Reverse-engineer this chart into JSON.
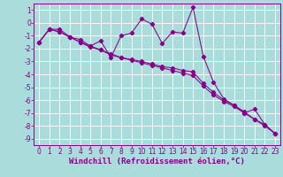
{
  "xlabel": "Windchill (Refroidissement éolien,°C)",
  "bg_color": "#aadcdc",
  "grid_color": "#c8e8e8",
  "line_color": "#880088",
  "x_data": [
    0,
    1,
    2,
    3,
    4,
    5,
    6,
    7,
    8,
    9,
    10,
    11,
    12,
    13,
    14,
    15,
    16,
    17,
    18,
    19,
    20,
    21,
    22,
    23
  ],
  "y_jagged": [
    -1.5,
    -0.5,
    -0.5,
    -1.1,
    -1.3,
    -1.8,
    -1.4,
    -2.7,
    -1.0,
    -0.8,
    0.3,
    -0.1,
    -1.6,
    -0.7,
    -0.8,
    1.2,
    -2.6,
    -4.6,
    -5.9,
    -6.4,
    -7.0,
    -6.7,
    -7.9,
    -8.6
  ],
  "y_trend1": [
    -1.5,
    -0.5,
    -0.7,
    -1.1,
    -1.5,
    -1.8,
    -2.1,
    -2.4,
    -2.7,
    -2.85,
    -3.0,
    -3.2,
    -3.4,
    -3.5,
    -3.7,
    -3.8,
    -4.7,
    -5.4,
    -6.0,
    -6.4,
    -6.9,
    -7.5,
    -7.9,
    -8.6
  ],
  "y_trend2": [
    -1.5,
    -0.5,
    -0.7,
    -1.1,
    -1.5,
    -1.9,
    -2.1,
    -2.5,
    -2.7,
    -2.9,
    -3.1,
    -3.3,
    -3.5,
    -3.7,
    -3.9,
    -4.1,
    -4.9,
    -5.6,
    -6.1,
    -6.5,
    -7.0,
    -7.5,
    -8.0,
    -8.6
  ],
  "ylim": [
    -9.5,
    1.5
  ],
  "xlim": [
    -0.5,
    23.5
  ],
  "yticks": [
    1,
    0,
    -1,
    -2,
    -3,
    -4,
    -5,
    -6,
    -7,
    -8,
    -9
  ],
  "xticks": [
    0,
    1,
    2,
    3,
    4,
    5,
    6,
    7,
    8,
    9,
    10,
    11,
    12,
    13,
    14,
    15,
    16,
    17,
    18,
    19,
    20,
    21,
    22,
    23
  ],
  "tick_font_size": 5.5,
  "label_font_size": 6.5
}
